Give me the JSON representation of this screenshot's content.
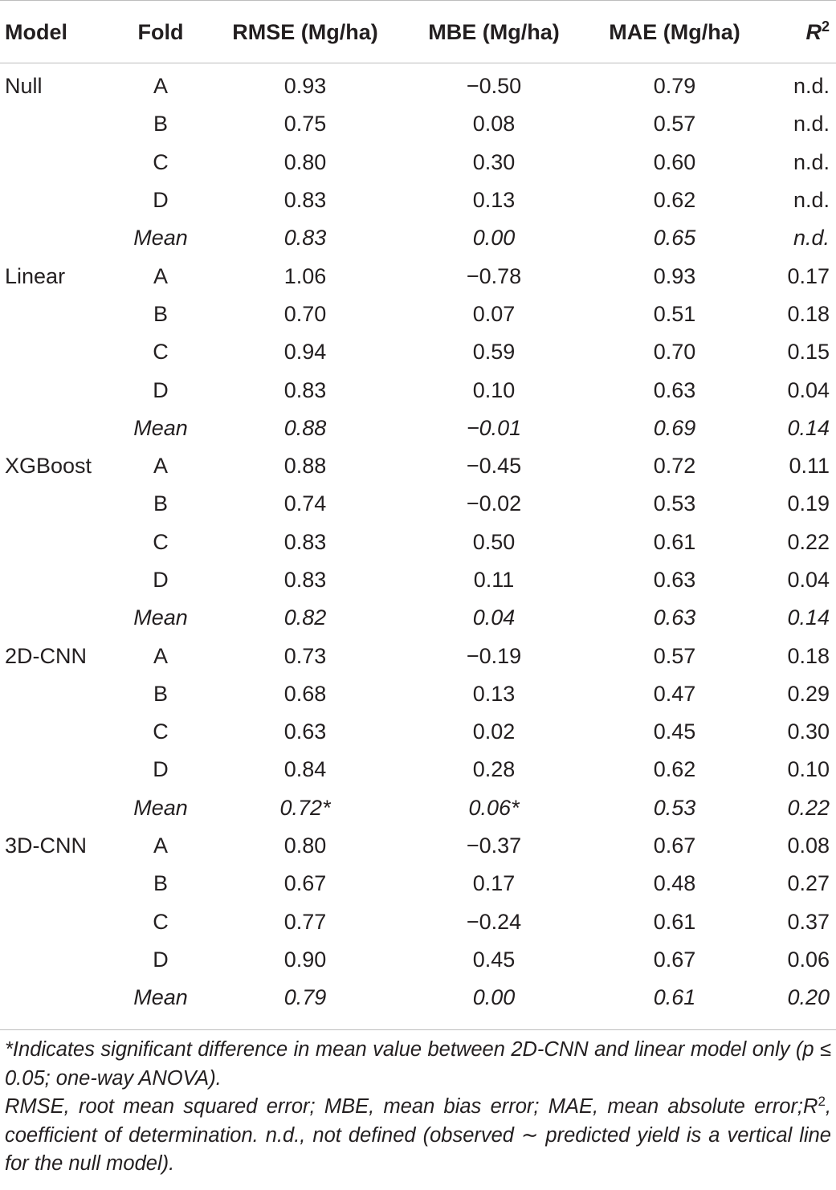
{
  "table": {
    "headers": {
      "model": "Model",
      "fold": "Fold",
      "rmse": "RMSE (Mg/ha)",
      "mbe": "MBE (Mg/ha)",
      "mae": "MAE (Mg/ha)",
      "r2_base": "R",
      "r2_sup": "2"
    },
    "rows": [
      {
        "model": "Null",
        "fold": "A",
        "rmse": "0.93",
        "mbe": "−0.50",
        "mae": "0.79",
        "r2": "n.d."
      },
      {
        "model": "",
        "fold": "B",
        "rmse": "0.75",
        "mbe": "0.08",
        "mae": "0.57",
        "r2": "n.d."
      },
      {
        "model": "",
        "fold": "C",
        "rmse": "0.80",
        "mbe": "0.30",
        "mae": "0.60",
        "r2": "n.d."
      },
      {
        "model": "",
        "fold": "D",
        "rmse": "0.83",
        "mbe": "0.13",
        "mae": "0.62",
        "r2": "n.d."
      },
      {
        "model": "",
        "fold": "Mean",
        "rmse": "0.83",
        "mbe": "0.00",
        "mae": "0.65",
        "r2": "n.d."
      },
      {
        "model": "Linear",
        "fold": "A",
        "rmse": "1.06",
        "mbe": "−0.78",
        "mae": "0.93",
        "r2": "0.17"
      },
      {
        "model": "",
        "fold": "B",
        "rmse": "0.70",
        "mbe": "0.07",
        "mae": "0.51",
        "r2": "0.18"
      },
      {
        "model": "",
        "fold": "C",
        "rmse": "0.94",
        "mbe": "0.59",
        "mae": "0.70",
        "r2": "0.15"
      },
      {
        "model": "",
        "fold": "D",
        "rmse": "0.83",
        "mbe": "0.10",
        "mae": "0.63",
        "r2": "0.04"
      },
      {
        "model": "",
        "fold": "Mean",
        "rmse": "0.88",
        "mbe": "−0.01",
        "mae": "0.69",
        "r2": "0.14"
      },
      {
        "model": "XGBoost",
        "fold": "A",
        "rmse": "0.88",
        "mbe": "−0.45",
        "mae": "0.72",
        "r2": "0.11"
      },
      {
        "model": "",
        "fold": "B",
        "rmse": "0.74",
        "mbe": "−0.02",
        "mae": "0.53",
        "r2": "0.19"
      },
      {
        "model": "",
        "fold": "C",
        "rmse": "0.83",
        "mbe": "0.50",
        "mae": "0.61",
        "r2": "0.22"
      },
      {
        "model": "",
        "fold": "D",
        "rmse": "0.83",
        "mbe": "0.11",
        "mae": "0.63",
        "r2": "0.04"
      },
      {
        "model": "",
        "fold": "Mean",
        "rmse": "0.82",
        "mbe": "0.04",
        "mae": "0.63",
        "r2": "0.14"
      },
      {
        "model": "2D-CNN",
        "fold": "A",
        "rmse": "0.73",
        "mbe": "−0.19",
        "mae": "0.57",
        "r2": "0.18"
      },
      {
        "model": "",
        "fold": "B",
        "rmse": "0.68",
        "mbe": "0.13",
        "mae": "0.47",
        "r2": "0.29"
      },
      {
        "model": "",
        "fold": "C",
        "rmse": "0.63",
        "mbe": "0.02",
        "mae": "0.45",
        "r2": "0.30"
      },
      {
        "model": "",
        "fold": "D",
        "rmse": "0.84",
        "mbe": "0.28",
        "mae": "0.62",
        "r2": "0.10"
      },
      {
        "model": "",
        "fold": "Mean",
        "rmse": "0.72*",
        "mbe": "0.06*",
        "mae": "0.53",
        "r2": "0.22"
      },
      {
        "model": "3D-CNN",
        "fold": "A",
        "rmse": "0.80",
        "mbe": "−0.37",
        "mae": "0.67",
        "r2": "0.08"
      },
      {
        "model": "",
        "fold": "B",
        "rmse": "0.67",
        "mbe": "0.17",
        "mae": "0.48",
        "r2": "0.27"
      },
      {
        "model": "",
        "fold": "C",
        "rmse": "0.77",
        "mbe": "−0.24",
        "mae": "0.61",
        "r2": "0.37"
      },
      {
        "model": "",
        "fold": "D",
        "rmse": "0.90",
        "mbe": "0.45",
        "mae": "0.67",
        "r2": "0.06"
      },
      {
        "model": "",
        "fold": "Mean",
        "rmse": "0.79",
        "mbe": "0.00",
        "mae": "0.61",
        "r2": "0.20"
      }
    ]
  },
  "notes": {
    "significance": "*Indicates significant difference in mean value between 2D-CNN and linear model only (p ≤ 0.05; one-way ANOVA).",
    "abbrev_part1": "RMSE, root mean squared error; MBE, mean bias error; MAE, mean absolute error;R",
    "abbrev_sup": "2",
    "abbrev_part2": ", coefficient of determination. n.d., not defined (observed ∼ predicted yield is a vertical line for the null model)."
  }
}
